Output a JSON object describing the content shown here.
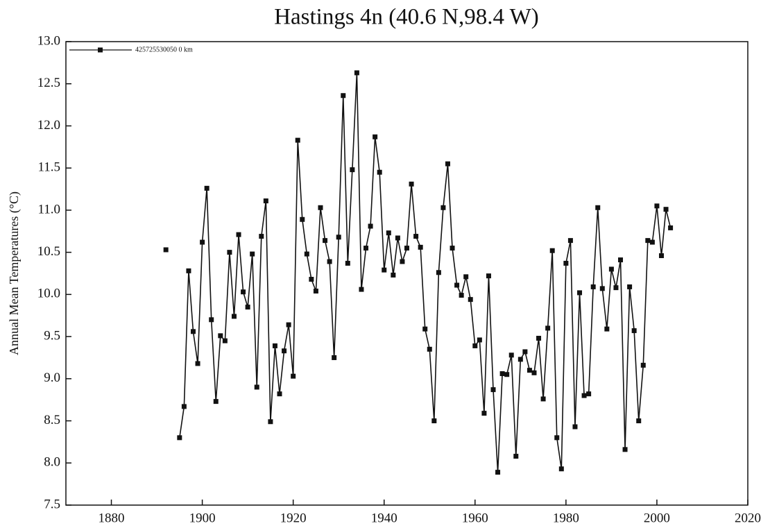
{
  "chart_data": {
    "type": "line",
    "title": "Hastings 4n (40.6 N,98.4 W)",
    "y_label": "Annual Mean Temperatures (°C)",
    "legend": "upper left",
    "grid": false,
    "xlim": [
      1870,
      2020
    ],
    "xticks": [
      1880,
      1900,
      1920,
      1940,
      1960,
      1980,
      2000,
      2020
    ],
    "ylim": [
      7.5,
      13
    ],
    "yticks": [
      {
        "value": 7.5,
        "label": "7.5"
      },
      {
        "value": 8,
        "label": "8.0"
      },
      8.5,
      {
        "value": 9,
        "label": "9.0"
      },
      9.5,
      {
        "value": 10,
        "label": "10.0"
      },
      10.5,
      {
        "value": 11,
        "label": "11.0"
      },
      11.5,
      {
        "value": 12,
        "label": "12.0"
      },
      12.5,
      {
        "value": 13,
        "label": "13.0"
      }
    ],
    "x": [
      1892,
      1893,
      1894,
      1895,
      1896,
      1897,
      1898,
      1899,
      1900,
      1901,
      1902,
      1903,
      1904,
      1905,
      1906,
      1907,
      1908,
      1909,
      1910,
      1911,
      1912,
      1913,
      1914,
      1915,
      1916,
      1917,
      1918,
      1919,
      1920,
      1921,
      1922,
      1923,
      1924,
      1925,
      1926,
      1927,
      1928,
      1929,
      1930,
      1931,
      1932,
      1933,
      1934,
      1935,
      1936,
      1937,
      1938,
      1939,
      1940,
      1941,
      1942,
      1943,
      1944,
      1945,
      1946,
      1947,
      1948,
      1949,
      1950,
      1951,
      1952,
      1953,
      1954,
      1955,
      1956,
      1957,
      1958,
      1959,
      1960,
      1961,
      1962,
      1963,
      1964,
      1965,
      1966,
      1967,
      1968,
      1969,
      1970,
      1971,
      1972,
      1973,
      1974,
      1975,
      1976,
      1977,
      1978,
      1979,
      1980,
      1981,
      1982,
      1983,
      1984,
      1985,
      1986,
      1987,
      1988,
      1989,
      1990,
      1991,
      1992,
      1993,
      1994,
      1995,
      1996,
      1997,
      1998,
      1999,
      2000,
      2001,
      2002,
      2003
    ],
    "series": [
      {
        "name": "425725530050 0 km",
        "color": "#111111",
        "values": [
          10.53,
          null,
          null,
          8.3,
          8.67,
          10.28,
          9.56,
          9.18,
          10.62,
          11.26,
          9.7,
          8.73,
          9.51,
          9.45,
          10.5,
          9.74,
          10.71,
          10.03,
          9.85,
          10.48,
          8.9,
          10.69,
          11.11,
          8.49,
          9.39,
          8.82,
          9.33,
          9.64,
          9.03,
          11.83,
          10.89,
          10.48,
          10.18,
          10.04,
          11.03,
          10.64,
          10.39,
          9.25,
          10.68,
          12.36,
          10.37,
          11.48,
          12.63,
          10.06,
          10.55,
          10.81,
          11.87,
          11.45,
          10.29,
          10.73,
          10.23,
          10.67,
          10.39,
          10.55,
          11.31,
          10.69,
          10.56,
          9.59,
          9.35,
          8.5,
          10.26,
          11.03,
          11.55,
          10.55,
          10.11,
          9.99,
          10.21,
          9.94,
          9.39,
          9.46,
          8.59,
          10.22,
          8.87,
          7.89,
          9.06,
          9.05,
          9.28,
          8.08,
          9.23,
          9.32,
          9.1,
          9.07,
          9.48,
          8.76,
          9.6,
          10.52,
          8.3,
          7.93,
          10.37,
          10.64,
          8.43,
          10.02,
          8.8,
          8.82,
          10.09,
          11.03,
          10.07,
          9.59,
          10.3,
          10.08,
          10.41,
          8.16,
          10.09,
          9.57,
          8.5,
          9.16,
          10.64,
          10.62,
          11.05,
          10.46,
          11.01,
          10.79
        ]
      }
    ]
  }
}
